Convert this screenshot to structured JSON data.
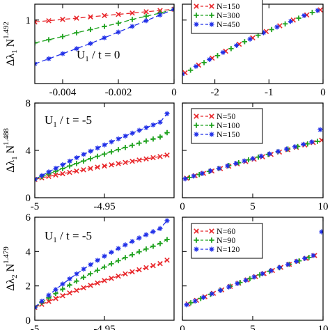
{
  "chart_data": [
    {
      "type": "line",
      "panel": "top-left",
      "ylabel": "Δλ",
      "ylabel_sub": "1",
      "ylabel_base": " N",
      "ylabel_exp": "1.492",
      "annotation": "U₁ / t = 0",
      "annotation_parts": [
        "U",
        "1",
        " / t = 0"
      ],
      "xlim": [
        -0.005,
        0
      ],
      "ylim": [
        0,
        1.25
      ],
      "x_ticks": [
        -0.004,
        -0.002,
        0
      ],
      "x_tick_labels": [
        "-0.004",
        "-0.002",
        "0"
      ],
      "y_ticks": [
        1
      ],
      "y_tick_labels": [
        "1"
      ],
      "grid": false,
      "series": [
        {
          "color": "#e8262a",
          "marker": "x",
          "x": [
            -0.005,
            -0.0045,
            -0.004,
            -0.0035,
            -0.003,
            -0.0025,
            -0.002,
            -0.0015,
            -0.001,
            -0.0005,
            0
          ],
          "y": [
            0.97,
            0.99,
            1.01,
            1.03,
            1.05,
            1.07,
            1.09,
            1.11,
            1.13,
            1.15,
            1.17
          ]
        },
        {
          "color": "#1fa21f",
          "marker": "+",
          "x": [
            -0.005,
            -0.0045,
            -0.004,
            -0.0035,
            -0.003,
            -0.0025,
            -0.002,
            -0.0015,
            -0.001,
            -0.0005,
            0
          ],
          "y": [
            0.64,
            0.69,
            0.74,
            0.8,
            0.85,
            0.9,
            0.95,
            1.01,
            1.06,
            1.11,
            1.17
          ]
        },
        {
          "color": "#1f2ee8",
          "marker": "*",
          "x": [
            -0.005,
            -0.0045,
            -0.004,
            -0.0035,
            -0.003,
            -0.0025,
            -0.002,
            -0.0015,
            -0.001,
            -0.0005,
            0
          ],
          "y": [
            0.31,
            0.39,
            0.47,
            0.55,
            0.63,
            0.72,
            0.81,
            0.9,
            0.99,
            1.08,
            1.17
          ]
        }
      ]
    },
    {
      "type": "scatter",
      "panel": "top-right",
      "xlim": [
        -2.6,
        0
      ],
      "ylim": [
        0,
        1.25
      ],
      "x_ticks": [
        -2,
        -1,
        0
      ],
      "x_tick_labels": [
        "-2",
        "-1",
        "0"
      ],
      "y_ticks": [],
      "y_tick_labels": [],
      "grid": false,
      "legend_placement": "top",
      "legend": [
        "N=150",
        "N=300",
        "N=450"
      ],
      "series": [
        {
          "name": "N=150",
          "color": "#e8262a",
          "marker": "x",
          "x": [
            -2.55,
            -2.3,
            -2.05,
            -1.8,
            -1.55,
            -1.3,
            -1.05,
            -0.8,
            -0.55,
            -0.3,
            -0.05
          ],
          "y": [
            0.17,
            0.29,
            0.4,
            0.51,
            0.62,
            0.72,
            0.82,
            0.91,
            1.0,
            1.08,
            1.16
          ]
        },
        {
          "name": "N=300",
          "color": "#1fa21f",
          "marker": "+",
          "x": [
            -2.45,
            -2.2,
            -1.95,
            -1.7,
            -1.45,
            -1.2,
            -0.95,
            -0.7,
            -0.45,
            -0.2
          ],
          "y": [
            0.21,
            0.33,
            0.44,
            0.55,
            0.66,
            0.76,
            0.85,
            0.94,
            1.03,
            1.12
          ]
        },
        {
          "name": "N=450",
          "color": "#1f2ee8",
          "marker": "*",
          "x": [
            -2.6,
            -2.35,
            -2.1,
            -1.85,
            -1.6,
            -1.35,
            -1.1,
            -0.85,
            -0.6,
            -0.35,
            -0.1
          ],
          "y": [
            0.15,
            0.27,
            0.38,
            0.49,
            0.6,
            0.7,
            0.8,
            0.89,
            0.98,
            1.07,
            1.15
          ]
        }
      ]
    },
    {
      "type": "line",
      "panel": "middle-left",
      "ylabel": "Δλ",
      "ylabel_sub": "1",
      "ylabel_base": " N",
      "ylabel_exp": "1.488",
      "annotation": "U₁ / t = -5",
      "annotation_parts": [
        "U",
        "1",
        " / t = -5"
      ],
      "xlim": [
        -5,
        -4.9
      ],
      "ylim": [
        0,
        8
      ],
      "x_ticks": [
        -5,
        -4.95
      ],
      "x_tick_labels": [
        "-5",
        "-4.95"
      ],
      "y_ticks": [
        0,
        4,
        8
      ],
      "y_tick_labels": [
        "0",
        "4",
        "8"
      ],
      "grid": false,
      "series": [
        {
          "color": "#e8262a",
          "marker": "x",
          "x": [
            -5,
            -4.995,
            -4.99,
            -4.985,
            -4.98,
            -4.975,
            -4.97,
            -4.965,
            -4.96,
            -4.955,
            -4.95,
            -4.945,
            -4.94,
            -4.935,
            -4.93,
            -4.925,
            -4.92,
            -4.915,
            -4.91,
            -4.905
          ],
          "y": [
            1.55,
            1.68,
            1.8,
            1.92,
            2.03,
            2.14,
            2.25,
            2.36,
            2.47,
            2.58,
            2.68,
            2.78,
            2.88,
            2.98,
            3.08,
            3.18,
            3.28,
            3.38,
            3.48,
            3.6
          ]
        },
        {
          "color": "#1fa21f",
          "marker": "+",
          "x": [
            -5,
            -4.995,
            -4.99,
            -4.985,
            -4.98,
            -4.975,
            -4.97,
            -4.965,
            -4.96,
            -4.955,
            -4.95,
            -4.945,
            -4.94,
            -4.935,
            -4.93,
            -4.925,
            -4.92,
            -4.915,
            -4.91,
            -4.905
          ],
          "y": [
            1.55,
            1.78,
            2.01,
            2.24,
            2.46,
            2.68,
            2.89,
            3.1,
            3.3,
            3.5,
            3.69,
            3.88,
            4.07,
            4.25,
            4.43,
            4.61,
            4.79,
            4.96,
            5.13,
            5.5
          ]
        },
        {
          "color": "#1f2ee8",
          "marker": "*",
          "x": [
            -5,
            -4.995,
            -4.99,
            -4.985,
            -4.98,
            -4.975,
            -4.97,
            -4.965,
            -4.96,
            -4.955,
            -4.95,
            -4.945,
            -4.94,
            -4.935,
            -4.93,
            -4.925,
            -4.92,
            -4.915,
            -4.91,
            -4.905
          ],
          "y": [
            1.55,
            1.87,
            2.18,
            2.49,
            2.79,
            3.09,
            3.38,
            3.66,
            3.93,
            4.2,
            4.46,
            4.72,
            4.97,
            5.21,
            5.45,
            5.69,
            5.92,
            6.15,
            6.38,
            7.1
          ]
        }
      ]
    },
    {
      "type": "scatter",
      "panel": "middle-right",
      "xlim": [
        0,
        10
      ],
      "ylim": [
        0,
        8
      ],
      "x_ticks": [
        0,
        5,
        10
      ],
      "x_tick_labels": [
        "0",
        "5",
        "10"
      ],
      "y_ticks": [],
      "y_tick_labels": [],
      "grid": false,
      "legend_placement": "top-left",
      "legend": [
        "N=50",
        "N=100",
        "N=150"
      ],
      "series": [
        {
          "name": "N=50",
          "color": "#e8262a",
          "marker": "x",
          "x": [
            0.3,
            0.9,
            1.5,
            2.1,
            2.7,
            3.3,
            3.9,
            4.5,
            5.1,
            5.7,
            6.3,
            6.9,
            7.5,
            8.1,
            8.7,
            9.3,
            9.9
          ],
          "y": [
            1.65,
            1.86,
            2.06,
            2.26,
            2.46,
            2.66,
            2.86,
            3.06,
            3.26,
            3.46,
            3.66,
            3.86,
            4.06,
            4.26,
            4.46,
            4.66,
            4.86
          ]
        },
        {
          "name": "N=100",
          "color": "#1fa21f",
          "marker": "+",
          "x": [
            0.5,
            1.2,
            1.9,
            2.6,
            3.3,
            4.0,
            4.7,
            5.4,
            6.1,
            6.8,
            7.5,
            8.2,
            8.9,
            9.6
          ],
          "y": [
            1.7,
            1.96,
            2.22,
            2.47,
            2.72,
            2.96,
            3.2,
            3.43,
            3.66,
            3.89,
            4.11,
            4.33,
            4.55,
            4.76
          ]
        },
        {
          "name": "N=150",
          "color": "#1f2ee8",
          "marker": "*",
          "x": [
            0.2,
            0.8,
            1.4,
            2.0,
            2.6,
            3.2,
            3.8,
            4.4,
            5.0,
            5.6,
            6.2,
            6.8,
            7.4,
            8.0,
            8.6,
            9.2,
            9.8
          ],
          "y": [
            1.6,
            1.83,
            2.05,
            2.27,
            2.48,
            2.69,
            2.9,
            3.11,
            3.31,
            3.51,
            3.71,
            3.91,
            4.11,
            4.31,
            4.51,
            4.71,
            5.75
          ]
        }
      ]
    },
    {
      "type": "line",
      "panel": "bottom-left",
      "ylabel": "Δλ",
      "ylabel_sub": "2",
      "ylabel_base": " N",
      "ylabel_exp": "1.479",
      "annotation": "U₁ / t = -5",
      "annotation_parts": [
        "U",
        "1",
        " / t = -5"
      ],
      "xlim": [
        -5,
        -4.9
      ],
      "ylim": [
        0,
        6
      ],
      "x_ticks": [
        -5,
        -4.95
      ],
      "x_tick_labels": [
        "-5",
        "-4.95"
      ],
      "y_ticks": [
        0,
        2,
        4,
        6
      ],
      "y_tick_labels": [
        "0",
        "2",
        "4",
        "6"
      ],
      "grid": false,
      "series": [
        {
          "color": "#e8262a",
          "marker": "x",
          "x": [
            -5,
            -4.995,
            -4.99,
            -4.985,
            -4.98,
            -4.975,
            -4.97,
            -4.965,
            -4.96,
            -4.955,
            -4.95,
            -4.945,
            -4.94,
            -4.935,
            -4.93,
            -4.925,
            -4.92,
            -4.915,
            -4.91,
            -4.905
          ],
          "y": [
            0.75,
            0.93,
            1.1,
            1.27,
            1.43,
            1.59,
            1.74,
            1.89,
            2.03,
            2.17,
            2.31,
            2.44,
            2.57,
            2.7,
            2.82,
            2.94,
            3.06,
            3.18,
            3.3,
            3.5
          ]
        },
        {
          "color": "#1fa21f",
          "marker": "+",
          "x": [
            -5,
            -4.995,
            -4.99,
            -4.985,
            -4.98,
            -4.975,
            -4.97,
            -4.965,
            -4.96,
            -4.955,
            -4.95,
            -4.945,
            -4.94,
            -4.935,
            -4.93,
            -4.925,
            -4.92,
            -4.915,
            -4.91,
            -4.905
          ],
          "y": [
            0.75,
            1.03,
            1.3,
            1.56,
            1.81,
            2.05,
            2.28,
            2.5,
            2.71,
            2.91,
            3.1,
            3.29,
            3.47,
            3.65,
            3.82,
            3.99,
            4.15,
            4.31,
            4.47,
            4.7
          ]
        },
        {
          "color": "#1f2ee8",
          "marker": "*",
          "x": [
            -5,
            -4.995,
            -4.99,
            -4.985,
            -4.98,
            -4.975,
            -4.97,
            -4.965,
            -4.96,
            -4.955,
            -4.95,
            -4.945,
            -4.94,
            -4.935,
            -4.93,
            -4.925,
            -4.92,
            -4.915,
            -4.91,
            -4.905
          ],
          "y": [
            0.75,
            1.11,
            1.46,
            1.79,
            2.11,
            2.41,
            2.7,
            2.98,
            3.24,
            3.49,
            3.73,
            3.96,
            4.18,
            4.39,
            4.59,
            4.79,
            4.98,
            5.16,
            5.34,
            5.8
          ]
        }
      ]
    },
    {
      "type": "scatter",
      "panel": "bottom-right",
      "xlim": [
        0,
        10
      ],
      "ylim": [
        0,
        6
      ],
      "x_ticks": [
        0,
        5,
        10
      ],
      "x_tick_labels": [
        "0",
        "5",
        "10"
      ],
      "y_ticks": [],
      "y_tick_labels": [],
      "grid": false,
      "legend_placement": "top-left",
      "legend": [
        "N=60",
        "N=90",
        "N=120"
      ],
      "series": [
        {
          "name": "N=60",
          "color": "#e8262a",
          "marker": "x",
          "x": [
            0.4,
            1.0,
            1.6,
            2.2,
            2.8,
            3.4,
            4.0,
            4.6,
            5.2,
            5.8,
            6.4,
            7.0,
            7.6,
            8.2,
            8.8,
            9.4
          ],
          "y": [
            0.95,
            1.16,
            1.37,
            1.57,
            1.77,
            1.97,
            2.16,
            2.35,
            2.54,
            2.72,
            2.9,
            3.08,
            3.26,
            3.43,
            3.6,
            3.77
          ]
        },
        {
          "name": "N=90",
          "color": "#1fa21f",
          "marker": "+",
          "x": [
            0.6,
            1.3,
            2.0,
            2.7,
            3.4,
            4.1,
            4.8,
            5.5,
            6.2,
            6.9,
            7.6,
            8.3,
            9.0
          ],
          "y": [
            1.02,
            1.27,
            1.51,
            1.75,
            1.98,
            2.2,
            2.42,
            2.64,
            2.85,
            3.06,
            3.26,
            3.46,
            3.66
          ]
        },
        {
          "name": "N=120",
          "color": "#1f2ee8",
          "marker": "*",
          "x": [
            0.3,
            0.9,
            1.5,
            2.1,
            2.7,
            3.3,
            3.9,
            4.5,
            5.1,
            5.7,
            6.3,
            6.9,
            7.5,
            8.1,
            8.7,
            9.3,
            9.9
          ],
          "y": [
            0.9,
            1.12,
            1.33,
            1.54,
            1.74,
            1.94,
            2.14,
            2.33,
            2.52,
            2.71,
            2.89,
            3.07,
            3.25,
            3.43,
            3.6,
            3.77,
            5.15
          ]
        }
      ]
    }
  ]
}
